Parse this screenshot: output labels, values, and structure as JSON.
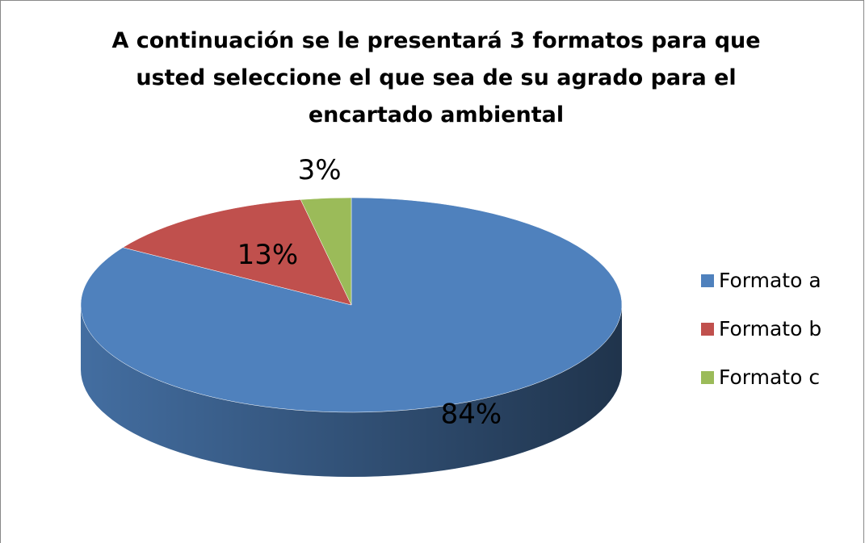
{
  "chart_data": {
    "type": "pie",
    "title": "A continuación se le presentará 3 formatos para que usted seleccione el que sea de su agrado para el encartado ambiental",
    "categories": [
      "Formato a",
      "Formato b",
      "Formato c"
    ],
    "values": [
      84,
      13,
      3
    ],
    "value_labels": [
      "84%",
      "13%",
      "3%"
    ],
    "colors": [
      "#4f81bd",
      "#c0504d",
      "#9bbb59"
    ],
    "legend": "right"
  }
}
